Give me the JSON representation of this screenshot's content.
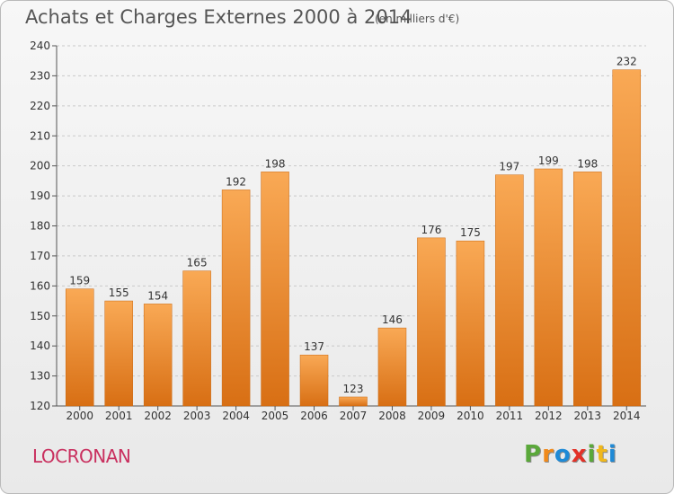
{
  "title": "Achats et Charges Externes 2000 à 2014",
  "subtitle": "(en milliers d'€)",
  "commune": "LOCRONAN",
  "logo": {
    "letters": [
      "P",
      "r",
      "o",
      "x",
      "i",
      "t",
      "i"
    ],
    "colors": [
      "#5aa83a",
      "#f08a1c",
      "#1f8ad6",
      "#e33127",
      "#5aa83a",
      "#f0b81c",
      "#1f8ad6"
    ]
  },
  "colors": {
    "bar_light": "#f9a955",
    "bar_dark": "#d86f14",
    "grid": "#c9c9c9",
    "text": "#333333"
  },
  "chart_data": {
    "type": "bar",
    "title": "Achats et Charges Externes 2000 à 2014",
    "subtitle": "(en milliers d'€)",
    "categories": [
      "2000",
      "2001",
      "2002",
      "2003",
      "2004",
      "2005",
      "2006",
      "2007",
      "2008",
      "2009",
      "2010",
      "2011",
      "2012",
      "2013",
      "2014"
    ],
    "values": [
      159,
      155,
      154,
      165,
      192,
      198,
      137,
      123,
      146,
      176,
      175,
      197,
      199,
      198,
      232
    ],
    "ylim": [
      120,
      240
    ],
    "yticks": [
      120,
      130,
      140,
      150,
      160,
      170,
      180,
      190,
      200,
      210,
      220,
      230,
      240
    ],
    "grid": true,
    "xlabel": "",
    "ylabel": ""
  }
}
